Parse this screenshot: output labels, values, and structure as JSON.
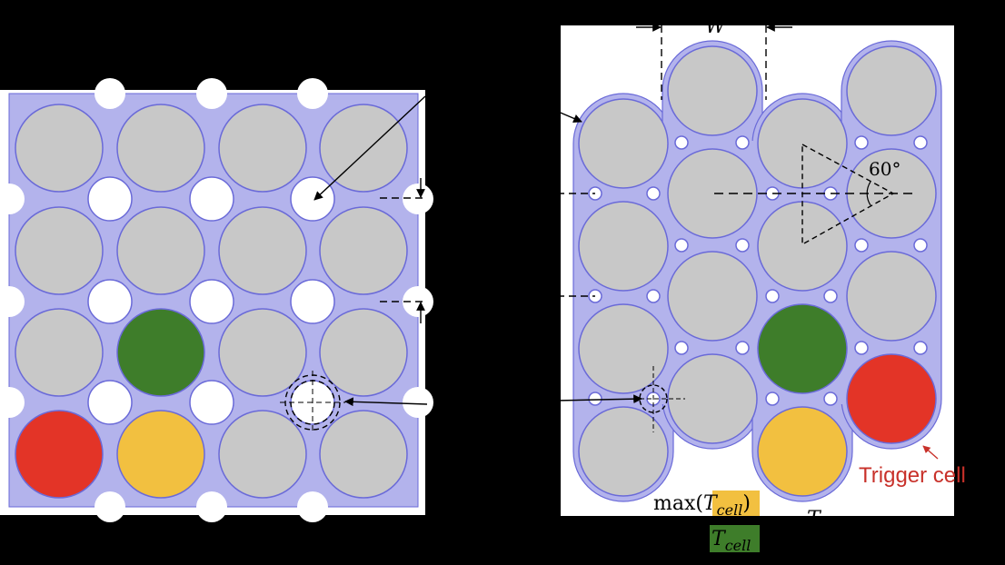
{
  "labels": {
    "angle": "60°",
    "width_symbol": "W",
    "trigger_cell": "Trigger cell",
    "max_prefix": "max(",
    "max_suffix": ")",
    "t_symbol": "T",
    "t_subscript": "cell",
    "partial_T": "T"
  },
  "colors": {
    "background": "#000000",
    "panel": "#ffffff",
    "holder": "#b3b3ec",
    "holder_stroke": "#6a6ad8",
    "cell": "#c8c8c8",
    "trigger": "#e33427",
    "hottest_neighbor": "#f2c040",
    "neighbor_green": "#3e7d2a",
    "trigger_label": "#c8312a",
    "highlight_yellow": "#f2c040",
    "highlight_green": "#3e7d2a"
  },
  "left_grid": {
    "rows": [
      [
        "cell",
        "cell",
        "cell",
        "cell"
      ],
      [
        "cell",
        "cell",
        "cell",
        "cell"
      ],
      [
        "cell",
        "green",
        "cell",
        "cell"
      ],
      [
        "red",
        "yellow",
        "cell",
        "cell"
      ]
    ]
  },
  "right_pack": {
    "columns": [
      [
        "cell",
        "cell",
        "cell",
        "cell"
      ],
      [
        "cell",
        "cell",
        "cell",
        "cell"
      ],
      [
        "cell",
        "cell",
        "cell",
        "green",
        "yellow"
      ],
      [
        "cell",
        "cell",
        "cell",
        "red"
      ]
    ]
  }
}
